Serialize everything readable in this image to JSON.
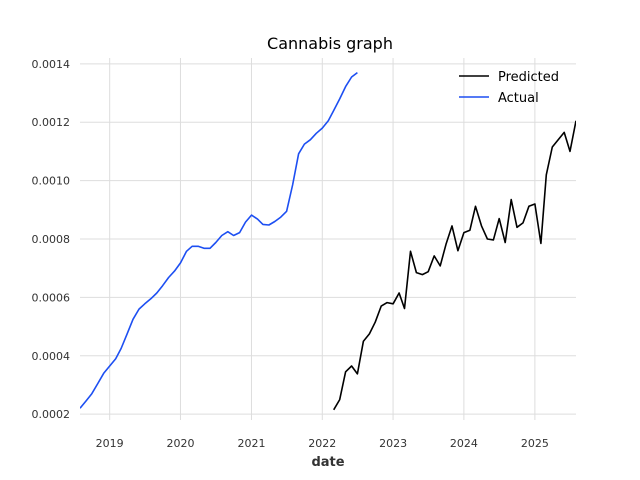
{
  "chart_data": {
    "type": "line",
    "title": "Cannabis graph",
    "xlabel": "date",
    "ylabel": "",
    "xlim": [
      "2018-08-01",
      "2025-08-01"
    ],
    "ylim": [
      0.00018,
      0.00142
    ],
    "xticks": [
      "2019",
      "2020",
      "2021",
      "2022",
      "2023",
      "2024",
      "2025"
    ],
    "yticks": [
      "0.0002",
      "0.0004",
      "0.0006",
      "0.0008",
      "0.0010",
      "0.0012",
      "0.0014"
    ],
    "grid": true,
    "legend_position": "top-right",
    "series": [
      {
        "name": "Predicted",
        "color": "#000000",
        "x": [
          "2022-03-01",
          "2022-04-01",
          "2022-05-01",
          "2022-06-01",
          "2022-07-01",
          "2022-08-01",
          "2022-09-01",
          "2022-10-01",
          "2022-11-01",
          "2022-12-01",
          "2023-01-01",
          "2023-02-01",
          "2023-03-01",
          "2023-04-01",
          "2023-05-01",
          "2023-06-01",
          "2023-07-01",
          "2023-08-01",
          "2023-09-01",
          "2023-10-01",
          "2023-11-01",
          "2023-12-01",
          "2024-01-01",
          "2024-02-01",
          "2024-03-01",
          "2024-04-01",
          "2024-05-01",
          "2024-06-01",
          "2024-07-01",
          "2024-08-01",
          "2024-09-01",
          "2024-10-01",
          "2024-11-01",
          "2024-12-01",
          "2025-01-01",
          "2025-02-01",
          "2025-03-01",
          "2025-04-01",
          "2025-05-01",
          "2025-06-01",
          "2025-07-01",
          "2025-08-01"
        ],
        "values": [
          0.000215,
          0.00025,
          0.000345,
          0.000365,
          0.000338,
          0.00045,
          0.000475,
          0.000515,
          0.00057,
          0.000582,
          0.000578,
          0.000615,
          0.000562,
          0.000758,
          0.000685,
          0.000678,
          0.000688,
          0.000742,
          0.000708,
          0.000782,
          0.000845,
          0.00076,
          0.000822,
          0.00083,
          0.000912,
          0.000845,
          0.0008,
          0.000797,
          0.00087,
          0.000788,
          0.000935,
          0.00084,
          0.000855,
          0.000912,
          0.00092,
          0.000785,
          0.00102,
          0.001115,
          0.00114,
          0.001165,
          0.0011,
          0.001205
        ]
      },
      {
        "name": "Actual",
        "color": "#1d4ff2",
        "x": [
          "2018-08-01",
          "2018-09-01",
          "2018-10-01",
          "2018-11-01",
          "2018-12-01",
          "2019-01-01",
          "2019-02-01",
          "2019-03-01",
          "2019-04-01",
          "2019-05-01",
          "2019-06-01",
          "2019-07-01",
          "2019-08-01",
          "2019-09-01",
          "2019-10-01",
          "2019-11-01",
          "2019-12-01",
          "2020-01-01",
          "2020-02-01",
          "2020-03-01",
          "2020-04-01",
          "2020-05-01",
          "2020-06-01",
          "2020-07-01",
          "2020-08-01",
          "2020-09-01",
          "2020-10-01",
          "2020-11-01",
          "2020-12-01",
          "2021-01-01",
          "2021-02-01",
          "2021-03-01",
          "2021-04-01",
          "2021-05-01",
          "2021-06-01",
          "2021-07-01",
          "2021-08-01",
          "2021-09-01",
          "2021-10-01",
          "2021-11-01",
          "2021-12-01",
          "2022-01-01",
          "2022-02-01",
          "2022-03-01",
          "2022-04-01",
          "2022-05-01",
          "2022-06-01",
          "2022-07-01"
        ],
        "values": [
          0.00022,
          0.000245,
          0.00027,
          0.000305,
          0.00034,
          0.000365,
          0.00039,
          0.000425,
          0.000475,
          0.000525,
          0.00056,
          0.000578,
          0.000595,
          0.000615,
          0.00064,
          0.000668,
          0.00069,
          0.000718,
          0.000758,
          0.000775,
          0.000775,
          0.000768,
          0.000768,
          0.000788,
          0.000812,
          0.000825,
          0.000812,
          0.000822,
          0.000858,
          0.000882,
          0.000868,
          0.00085,
          0.000848,
          0.00086,
          0.000875,
          0.000895,
          0.000985,
          0.001092,
          0.001125,
          0.00114,
          0.001162,
          0.00118,
          0.001205,
          0.00124,
          0.00128,
          0.001322,
          0.001355,
          0.00137
        ]
      }
    ]
  }
}
